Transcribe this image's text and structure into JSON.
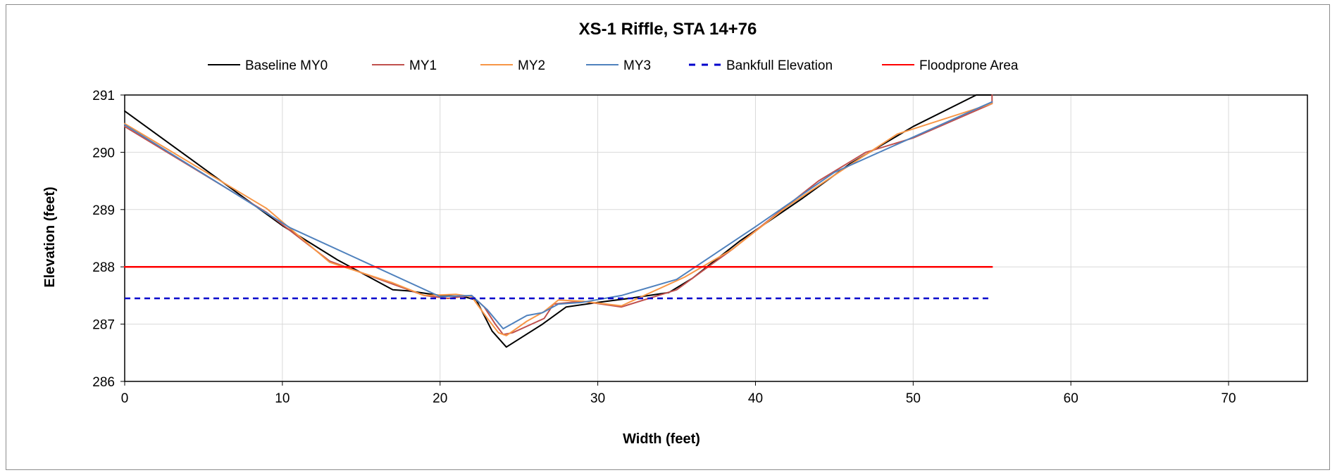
{
  "chart_data": {
    "type": "line",
    "title": "XS-1 Riffle, STA 14+76",
    "xlabel": "Width (feet)",
    "ylabel": "Elevation (feet)",
    "xlim": [
      0,
      75
    ],
    "ylim": [
      286,
      291
    ],
    "xticks": [
      0,
      10,
      20,
      30,
      40,
      50,
      60,
      70
    ],
    "yticks": [
      286,
      287,
      288,
      289,
      290,
      291
    ],
    "grid": true,
    "legend_position": "top",
    "series": [
      {
        "name": "Baseline MY0",
        "color": "#000000",
        "style": "solid",
        "x": [
          0,
          10,
          13.5,
          17,
          18,
          20,
          21.5,
          22.3,
          23.3,
          24.2,
          26.5,
          28,
          30,
          32,
          34.5,
          36,
          39,
          43,
          46,
          50,
          54,
          55
        ],
        "y": [
          290.72,
          288.72,
          288.12,
          287.6,
          287.58,
          287.5,
          287.48,
          287.42,
          286.88,
          286.6,
          287.0,
          287.3,
          287.38,
          287.45,
          287.55,
          287.8,
          288.45,
          289.2,
          289.8,
          290.45,
          291.05,
          291.15
        ]
      },
      {
        "name": "MY1",
        "color": "#c0504d",
        "style": "solid",
        "x": [
          0,
          9,
          13,
          16,
          19,
          20.5,
          22,
          22.8,
          23.5,
          24,
          24.6,
          26.6,
          27.2,
          29,
          31.5,
          35,
          36.5,
          38.5,
          41,
          44,
          47,
          50,
          55,
          55
        ],
        "y": [
          290.45,
          288.95,
          288.1,
          287.8,
          287.5,
          287.45,
          287.5,
          287.3,
          287.0,
          286.82,
          286.85,
          287.1,
          287.35,
          287.4,
          287.3,
          287.6,
          287.9,
          288.3,
          288.85,
          289.5,
          290.0,
          290.25,
          290.85,
          291.0
        ]
      },
      {
        "name": "MY2",
        "color": "#f79646",
        "style": "solid",
        "x": [
          0,
          9,
          13,
          17,
          19,
          21,
          22,
          23,
          23.7,
          24.2,
          25.5,
          26.6,
          27.5,
          29,
          31.5,
          35.5,
          38.5,
          42,
          45,
          49,
          55
        ],
        "y": [
          290.5,
          289.02,
          288.08,
          287.72,
          287.5,
          287.52,
          287.48,
          287.1,
          286.85,
          286.8,
          287.05,
          287.22,
          287.42,
          287.4,
          287.32,
          287.82,
          288.3,
          289.05,
          289.6,
          290.32,
          290.85
        ]
      },
      {
        "name": "MY3",
        "color": "#4f81bd",
        "style": "solid",
        "x": [
          0,
          10.5,
          20,
          22,
          23,
          24,
          25.5,
          26.5,
          27.5,
          29,
          31.5,
          35,
          40,
          45,
          55
        ],
        "y": [
          290.48,
          288.68,
          287.48,
          287.5,
          287.25,
          286.92,
          287.15,
          287.2,
          287.35,
          287.38,
          287.5,
          287.78,
          288.7,
          289.65,
          290.88
        ]
      },
      {
        "name": "Bankfull Elevation",
        "color": "#0000cc",
        "style": "dashed",
        "x": [
          0,
          55
        ],
        "y": [
          287.45,
          287.45
        ]
      },
      {
        "name": "Floodprone Area",
        "color": "#ff0000",
        "style": "solid",
        "x": [
          0,
          55
        ],
        "y": [
          288.0,
          288.0
        ]
      }
    ]
  }
}
